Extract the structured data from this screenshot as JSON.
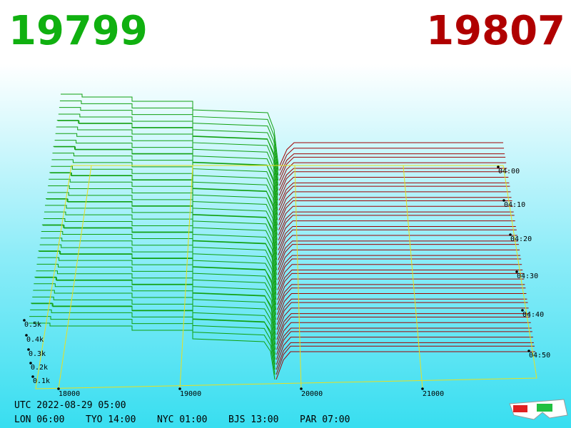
{
  "header": {
    "bid": "19799",
    "ask": "19807"
  },
  "price_axis": [
    "18000",
    "19000",
    "20000",
    "21000"
  ],
  "depth_axis": [
    "0.5k",
    "0.4k",
    "0.3k",
    "0.2k",
    "0.1k"
  ],
  "time_axis": [
    "04:00",
    "04:10",
    "04:20",
    "04:30",
    "04:40",
    "04:50"
  ],
  "footer": {
    "utc": "UTC 2022-08-29 05:00",
    "clocks": [
      "LON 06:00",
      "TYO 14:00",
      "NYC 01:00",
      "BJS 13:00",
      "PAR 07:00"
    ]
  }
}
